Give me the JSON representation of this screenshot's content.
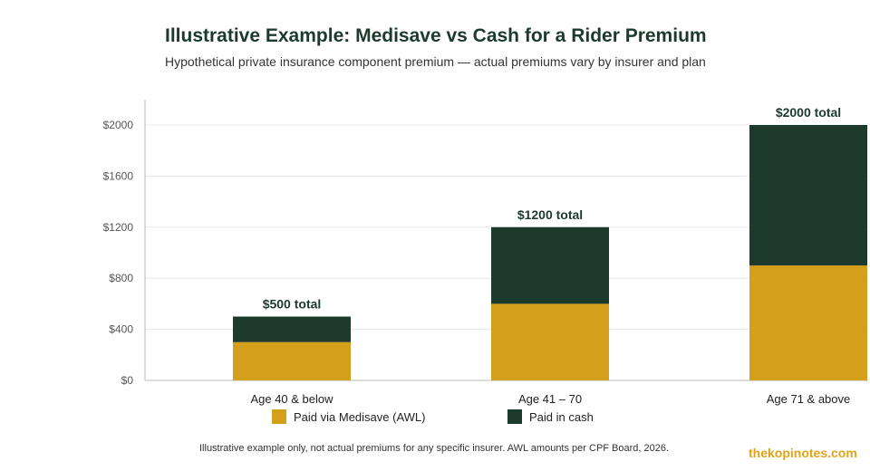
{
  "header": {
    "title": "Illustrative Example: Medisave vs Cash for a Rider Premium",
    "subtitle": "Hypothetical private insurance component premium — actual premiums vary by insurer and plan"
  },
  "footer": {
    "note": "Illustrative example only, not actual premiums for any specific insurer. AWL amounts per CPF Board, 2026.",
    "brand": "thekopinotes.com"
  },
  "colors": {
    "medisave": "#d4a01c",
    "cash": "#1c3b2c",
    "grid": "#e8e8e8",
    "axis": "#bbbbbb",
    "label": "#1c3b2c",
    "tick": "#555555"
  },
  "chart_data": {
    "type": "bar",
    "stacked": true,
    "categories": [
      "Age 40 & below",
      "Age 41 – 70",
      "Age 71 & above"
    ],
    "series": [
      {
        "name": "Paid via Medisave (AWL)",
        "values": [
          300,
          600,
          900
        ]
      },
      {
        "name": "Paid in cash",
        "values": [
          200,
          600,
          1100
        ]
      }
    ],
    "totals_labels": [
      "$500 total",
      "$1200 total",
      "$2000 total"
    ],
    "y_ticks": [
      "$0",
      "$400",
      "$800",
      "$1200",
      "$1600",
      "$2000"
    ],
    "y_tick_values": [
      0,
      400,
      800,
      1200,
      1600,
      2000
    ],
    "ylim": [
      0,
      2200
    ],
    "grid": true,
    "legend_position": "bottom"
  }
}
